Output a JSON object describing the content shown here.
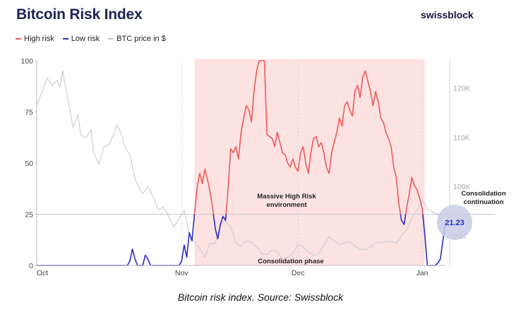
{
  "header": {
    "title": "Bitcoin Risk Index",
    "brand": "swissblock"
  },
  "legend": [
    {
      "label": "High risk",
      "color": "#ef5a5a"
    },
    {
      "label": "Low risk",
      "color": "#2a2cc8"
    },
    {
      "label": "BTC price in $",
      "color": "#c9c9c9"
    }
  ],
  "caption": "Bitcoin risk index. Source: Swissblock",
  "chart_data": {
    "type": "line",
    "x_ticks": [
      "Oct",
      "Nov",
      "Dec",
      "Jan"
    ],
    "y_left": {
      "ticks": [
        "0",
        "25",
        "50",
        "75",
        "100"
      ],
      "lim": [
        0,
        100
      ]
    },
    "y_right": {
      "ticks": [
        "90K",
        "100K",
        "110K",
        "120K"
      ],
      "lim": [
        84000,
        125500
      ]
    },
    "threshold": 25,
    "risk": [
      [
        0,
        0
      ],
      [
        10,
        0
      ],
      [
        20,
        0
      ],
      [
        30,
        0
      ],
      [
        35,
        0
      ],
      [
        36,
        2
      ],
      [
        37,
        8
      ],
      [
        38,
        3
      ],
      [
        39,
        0
      ],
      [
        41,
        0
      ],
      [
        42,
        5
      ],
      [
        43,
        3
      ],
      [
        44,
        0
      ],
      [
        50,
        0
      ],
      [
        55,
        0
      ],
      [
        56,
        2
      ],
      [
        57,
        10
      ],
      [
        58,
        4
      ],
      [
        59,
        16
      ],
      [
        60,
        12
      ],
      [
        61,
        25
      ],
      [
        62,
        38
      ],
      [
        63,
        45
      ],
      [
        64,
        40
      ],
      [
        65,
        47
      ],
      [
        66,
        42
      ],
      [
        67,
        36
      ],
      [
        68,
        28
      ],
      [
        69,
        18
      ],
      [
        70,
        13
      ],
      [
        71,
        20
      ],
      [
        72,
        24
      ],
      [
        73,
        22
      ],
      [
        74,
        38
      ],
      [
        75,
        57
      ],
      [
        76,
        55
      ],
      [
        77,
        58
      ],
      [
        78,
        52
      ],
      [
        79,
        65
      ],
      [
        80,
        72
      ],
      [
        81,
        78
      ],
      [
        82,
        76
      ],
      [
        83,
        70
      ],
      [
        84,
        85
      ],
      [
        85,
        95
      ],
      [
        86,
        100
      ],
      [
        87,
        100
      ],
      [
        88,
        100
      ],
      [
        89,
        64
      ],
      [
        90,
        63
      ],
      [
        91,
        62
      ],
      [
        92,
        58
      ],
      [
        93,
        65
      ],
      [
        94,
        60
      ],
      [
        95,
        55
      ],
      [
        96,
        54
      ],
      [
        97,
        50
      ],
      [
        98,
        48
      ],
      [
        99,
        52
      ],
      [
        100,
        48
      ],
      [
        101,
        46
      ],
      [
        102,
        55
      ],
      [
        103,
        58
      ],
      [
        104,
        50
      ],
      [
        105,
        45
      ],
      [
        106,
        55
      ],
      [
        107,
        62
      ],
      [
        108,
        63
      ],
      [
        109,
        58
      ],
      [
        110,
        60
      ],
      [
        111,
        55
      ],
      [
        112,
        48
      ],
      [
        113,
        45
      ],
      [
        114,
        55
      ],
      [
        115,
        60
      ],
      [
        116,
        65
      ],
      [
        117,
        72
      ],
      [
        118,
        68
      ],
      [
        119,
        78
      ],
      [
        120,
        80
      ],
      [
        121,
        76
      ],
      [
        122,
        73
      ],
      [
        123,
        85
      ],
      [
        124,
        88
      ],
      [
        125,
        82
      ],
      [
        126,
        92
      ],
      [
        127,
        95
      ],
      [
        128,
        90
      ],
      [
        129,
        85
      ],
      [
        130,
        78
      ],
      [
        131,
        85
      ],
      [
        132,
        80
      ],
      [
        133,
        72
      ],
      [
        134,
        70
      ],
      [
        135,
        65
      ],
      [
        136,
        62
      ],
      [
        137,
        58
      ],
      [
        138,
        48
      ],
      [
        139,
        43
      ],
      [
        140,
        30
      ],
      [
        141,
        22
      ],
      [
        142,
        20
      ],
      [
        143,
        28
      ],
      [
        144,
        35
      ],
      [
        145,
        43
      ],
      [
        146,
        39
      ],
      [
        147,
        37
      ],
      [
        148,
        33
      ],
      [
        149,
        28
      ],
      [
        150,
        15
      ],
      [
        151,
        0
      ],
      [
        152,
        0
      ],
      [
        153,
        0
      ],
      [
        154,
        0
      ],
      [
        155,
        1
      ],
      [
        156,
        3
      ],
      [
        157,
        12
      ],
      [
        158,
        21.23
      ]
    ],
    "btc_price": [
      [
        0,
        116500
      ],
      [
        2,
        119000
      ],
      [
        4,
        122000
      ],
      [
        6,
        120500
      ],
      [
        8,
        121500
      ],
      [
        9,
        120000
      ],
      [
        10,
        123500
      ],
      [
        12,
        118000
      ],
      [
        14,
        112000
      ],
      [
        16,
        114500
      ],
      [
        17,
        110500
      ],
      [
        19,
        109800
      ],
      [
        21,
        111500
      ],
      [
        22,
        107000
      ],
      [
        24,
        104500
      ],
      [
        26,
        108000
      ],
      [
        28,
        108500
      ],
      [
        30,
        111000
      ],
      [
        31,
        112500
      ],
      [
        33,
        110200
      ],
      [
        34,
        108000
      ],
      [
        36,
        106500
      ],
      [
        38,
        101500
      ],
      [
        39,
        100500
      ],
      [
        41,
        98500
      ],
      [
        43,
        100000
      ],
      [
        45,
        98000
      ],
      [
        47,
        95300
      ],
      [
        49,
        95800
      ],
      [
        51,
        94000
      ],
      [
        53,
        91800
      ],
      [
        55,
        93400
      ],
      [
        57,
        95200
      ],
      [
        59,
        90200
      ],
      [
        61,
        88700
      ],
      [
        63,
        87400
      ],
      [
        65,
        85700
      ],
      [
        67,
        88500
      ],
      [
        69,
        88400
      ],
      [
        71,
        92400
      ],
      [
        73,
        93000
      ],
      [
        75,
        91800
      ],
      [
        77,
        88600
      ],
      [
        79,
        87800
      ],
      [
        81,
        89000
      ],
      [
        83,
        88700
      ],
      [
        85,
        87800
      ],
      [
        87,
        86300
      ],
      [
        89,
        86200
      ],
      [
        91,
        87200
      ],
      [
        93,
        86700
      ],
      [
        95,
        85300
      ],
      [
        97,
        85700
      ],
      [
        99,
        86400
      ],
      [
        101,
        88300
      ],
      [
        103,
        87800
      ],
      [
        105,
        86700
      ],
      [
        107,
        86000
      ],
      [
        109,
        86400
      ],
      [
        111,
        88200
      ],
      [
        113,
        89800
      ],
      [
        115,
        89000
      ],
      [
        117,
        88300
      ],
      [
        119,
        88500
      ],
      [
        121,
        88800
      ],
      [
        123,
        88000
      ],
      [
        125,
        87300
      ],
      [
        127,
        87200
      ],
      [
        129,
        87700
      ],
      [
        131,
        88600
      ],
      [
        133,
        88700
      ],
      [
        135,
        88800
      ],
      [
        137,
        88900
      ],
      [
        139,
        88500
      ],
      [
        141,
        90000
      ],
      [
        143,
        91200
      ],
      [
        145,
        93500
      ],
      [
        147,
        95200
      ],
      [
        149,
        97300
      ],
      [
        151,
        95500
      ],
      [
        153,
        94800
      ],
      [
        155,
        94500
      ],
      [
        157,
        91800
      ],
      [
        158,
        90000
      ]
    ],
    "high_risk_region": [
      61,
      150
    ],
    "annotations": {
      "massive": [
        "Massive High Risk",
        "environment"
      ],
      "consolidation_phase": "Consolidation phase",
      "consolidation_continuation": [
        "Consolidation",
        "continuation"
      ],
      "current_value": "21.23"
    }
  }
}
